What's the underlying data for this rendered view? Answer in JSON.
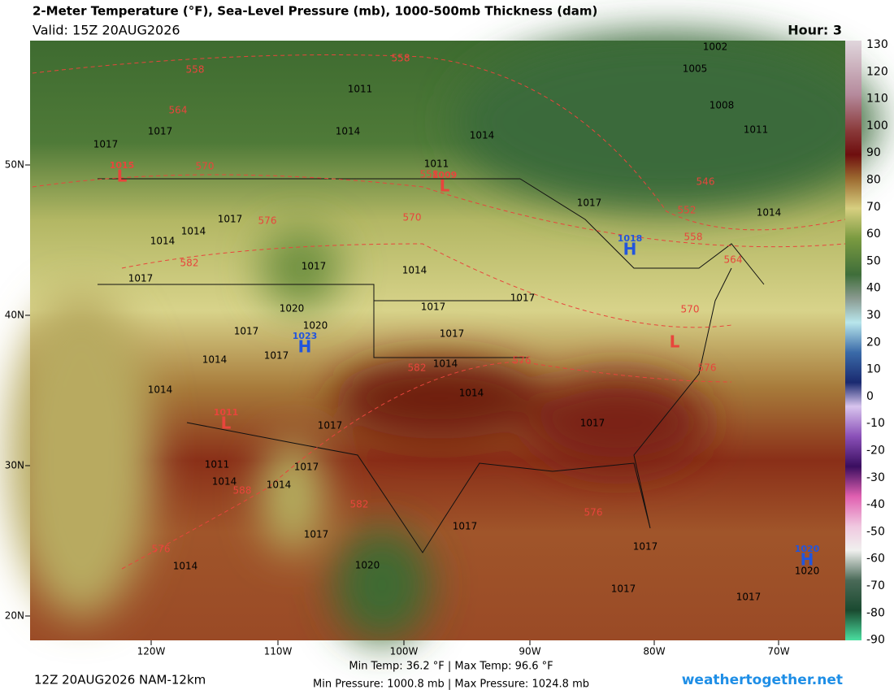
{
  "header": {
    "title": "2-Meter Temperature (°F), Sea-Level Pressure (mb), 1000-500mb Thickness (dam)",
    "valid": "Valid: 15Z 20AUG2026",
    "hour": "Hour: 3"
  },
  "colorbar": {
    "ticks": [
      130,
      120,
      110,
      100,
      90,
      80,
      70,
      60,
      50,
      40,
      30,
      20,
      10,
      0,
      -10,
      -20,
      -30,
      -40,
      -50,
      -60,
      -70,
      -80,
      -90
    ]
  },
  "axes": {
    "lat": [
      "50N",
      "40N",
      "30N",
      "20N"
    ],
    "lon": [
      "120W",
      "110W",
      "100W",
      "90W",
      "80W",
      "70W"
    ]
  },
  "pressure_centers": [
    {
      "letter": "L",
      "value": "1015"
    },
    {
      "letter": "L",
      "value": "1009"
    },
    {
      "letter": "H",
      "value": "1018"
    },
    {
      "letter": "H",
      "value": "1023"
    },
    {
      "letter": "L",
      "value": "1011"
    },
    {
      "letter": "L"
    },
    {
      "letter": "H",
      "value": "1020"
    }
  ],
  "isobar_labels": [
    "1002",
    "1005",
    "1008",
    "1011",
    "1011",
    "1017",
    "1017",
    "1014",
    "1014",
    "1011",
    "1017",
    "1014",
    "1017",
    "1014",
    "1014",
    "1017",
    "1014",
    "1017",
    "1017",
    "1017",
    "1020",
    "1020",
    "1017",
    "1017",
    "1014",
    "1017",
    "1014",
    "1014",
    "1014",
    "1017",
    "1017",
    "1017",
    "1011",
    "1014",
    "1014",
    "1017",
    "1017",
    "1017",
    "1020",
    "1014",
    "1020",
    "1017",
    "1017"
  ],
  "thickness_labels": [
    "558",
    "558",
    "564",
    "570",
    "558",
    "570",
    "576",
    "582",
    "546",
    "552",
    "558",
    "564",
    "570",
    "576",
    "582",
    "576",
    "588",
    "582",
    "576",
    "576"
  ],
  "footer": {
    "run": "12Z 20AUG2026 NAM-12km",
    "temps": "Min Temp:  36.2 °F | Max Temp:  96.6 °F",
    "pressures": "Min Pressure: 1000.8 mb | Max Pressure: 1024.8 mb",
    "site": "weathertogether.net"
  }
}
